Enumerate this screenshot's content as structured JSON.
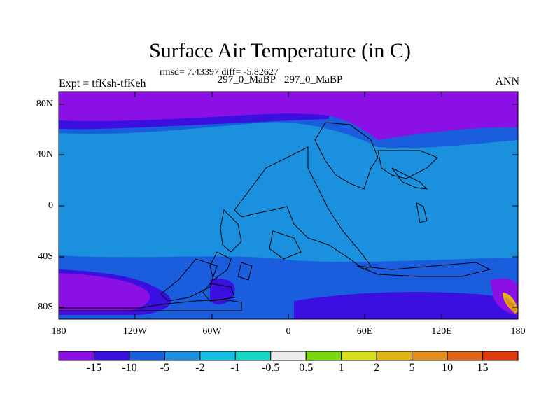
{
  "plot": {
    "title": "Surface Air Temperature (in C)",
    "stats": "rmsd= 7.43397 diff= -5.82627",
    "runs": "297_0_MaBP - 297_0_MaBP",
    "expt": "Expt = tfKsh-tfKeh",
    "season": "ANN"
  },
  "axes": {
    "y_ticks": [
      "80N",
      "40N",
      "0",
      "40S",
      "80S"
    ],
    "x_ticks": [
      "180",
      "120W",
      "60W",
      "0",
      "60E",
      "120E",
      "180"
    ]
  },
  "colorbar": {
    "colors": [
      "#8a10e6",
      "#3a0fe0",
      "#1a5ddd",
      "#1a90de",
      "#12bfe0",
      "#14d9c8",
      "#ececec",
      "#7cd80e",
      "#d9de1a",
      "#e0b414",
      "#e0901a",
      "#e06414",
      "#e03a0e"
    ],
    "labels": [
      "-15",
      "-10",
      "-5",
      "-2",
      "-1",
      "-0.5",
      "0.5",
      "1",
      "2",
      "5",
      "10",
      "15"
    ]
  }
}
